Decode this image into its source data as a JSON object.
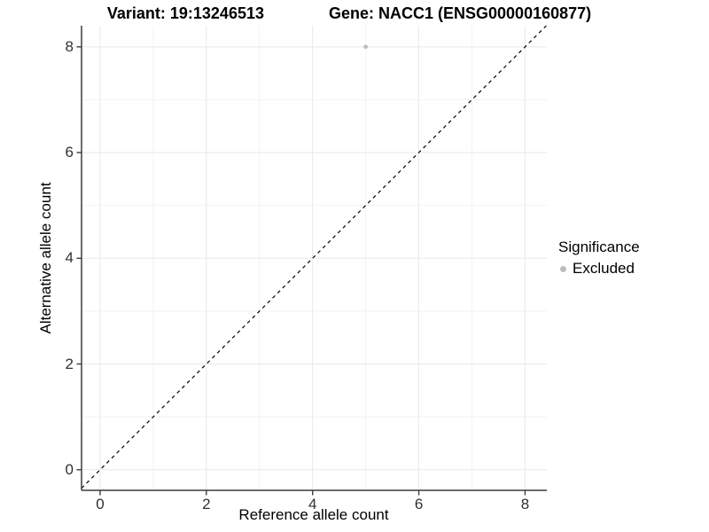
{
  "header": {
    "variant_label": "Variant: 19:13246513",
    "gene_label": "Gene: NACC1 (ENSG00000160877)"
  },
  "chart_data": {
    "type": "scatter",
    "title": "Variant: 19:13246513        Gene: NACC1 (ENSG00000160877)",
    "xlabel": "Reference allele count",
    "ylabel": "Alternative allele count",
    "xlim": [
      -0.35,
      8.41
    ],
    "ylim": [
      -0.39,
      8.4
    ],
    "x_ticks": [
      0,
      2,
      4,
      6,
      8
    ],
    "y_ticks": [
      0,
      2,
      4,
      6,
      8
    ],
    "x_minor_ticks": [
      1,
      3,
      5,
      7
    ],
    "y_minor_ticks": [
      1,
      3,
      5,
      7
    ],
    "grid": "on",
    "series": [
      {
        "name": "Excluded",
        "marker": "circle",
        "color": "#bdbdbd",
        "points": [
          {
            "x": 5,
            "y": 8
          }
        ]
      }
    ],
    "identity_line": {
      "slope": 1,
      "intercept": 0,
      "linetype": "dashed",
      "color": "#000000"
    },
    "legend": {
      "title": "Significance",
      "position": "right",
      "entries": [
        {
          "label": "Excluded",
          "color": "#bdbdbd",
          "marker": "circle"
        }
      ]
    }
  },
  "colors": {
    "background": "#ffffff",
    "axis_line": "#3c3c3c",
    "tick_mark": "#3c3c3c",
    "tick_label": "#303030",
    "grid_major": "#e8e8e8",
    "grid_minor": "#f3f3f3",
    "title_text": "#000000",
    "point": "#bdbdbd"
  }
}
